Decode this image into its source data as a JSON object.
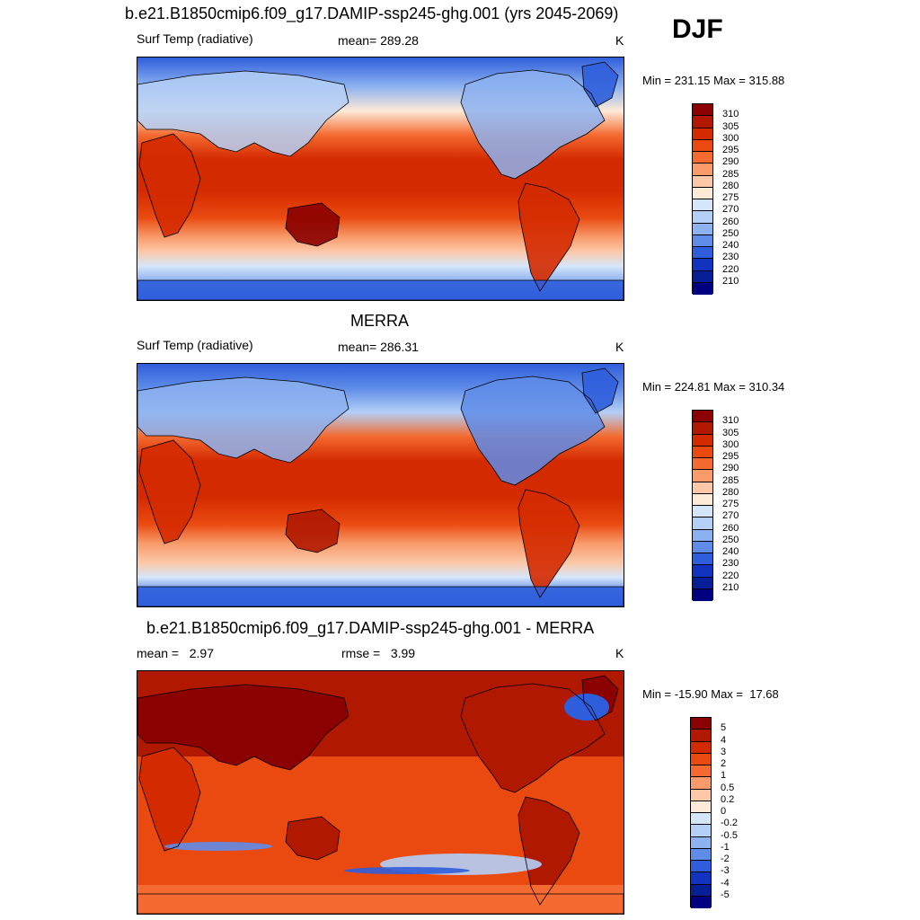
{
  "season": "DJF",
  "units": "K",
  "panels": [
    {
      "title": "b.e21.B1850cmip6.f09_g17.DAMIP-ssp245-ghg.001 (yrs 2045-2069)",
      "left_label": "Surf Temp (radiative)",
      "center_label": "mean= 289.28",
      "right_label": "K",
      "minmax": "Min = 231.15 Max = 315.88",
      "colorbar": {
        "labels": [
          "310",
          "305",
          "300",
          "295",
          "290",
          "285",
          "280",
          "275",
          "270",
          "260",
          "250",
          "240",
          "230",
          "220",
          "210"
        ],
        "colors": [
          "#8b0000",
          "#b01800",
          "#d42a00",
          "#ea4a10",
          "#f46a30",
          "#f89a6a",
          "#fcc8a8",
          "#fdebd8",
          "#d6e6fa",
          "#b4cff6",
          "#8db2f0",
          "#5f8ce8",
          "#2f5edc",
          "#1232c0",
          "#061e96",
          "#000080"
        ]
      },
      "map_style": "absolute"
    },
    {
      "title": "MERRA",
      "left_label": "Surf Temp (radiative)",
      "center_label": "mean= 286.31",
      "right_label": "K",
      "minmax": "Min = 224.81 Max = 310.34",
      "colorbar": {
        "labels": [
          "310",
          "305",
          "300",
          "295",
          "290",
          "285",
          "280",
          "275",
          "270",
          "260",
          "250",
          "240",
          "230",
          "220",
          "210"
        ],
        "colors": [
          "#8b0000",
          "#b01800",
          "#d42a00",
          "#ea4a10",
          "#f46a30",
          "#f89a6a",
          "#fcc8a8",
          "#fdebd8",
          "#d6e6fa",
          "#b4cff6",
          "#8db2f0",
          "#5f8ce8",
          "#2f5edc",
          "#1232c0",
          "#061e96",
          "#000080"
        ]
      },
      "map_style": "absolute"
    },
    {
      "title": "b.e21.B1850cmip6.f09_g17.DAMIP-ssp245-ghg.001 - MERRA",
      "left_label": "mean =   2.97",
      "center_label": "rmse =   3.99",
      "right_label": "K",
      "minmax": "Min = -15.90 Max =  17.68",
      "colorbar": {
        "labels": [
          "5",
          "4",
          "3",
          "2",
          "1",
          "0.5",
          "0.2",
          "0",
          "-0.2",
          "-0.5",
          "-1",
          "-2",
          "-3",
          "-4",
          "-5"
        ],
        "colors": [
          "#8b0000",
          "#b01800",
          "#d42a00",
          "#ea4a10",
          "#f46a30",
          "#f89a6a",
          "#fcc8a8",
          "#fdebd8",
          "#d6e6fa",
          "#b4cff6",
          "#8db2f0",
          "#5f8ce8",
          "#2f5edc",
          "#1232c0",
          "#061e96",
          "#000080"
        ]
      },
      "map_style": "difference"
    }
  ]
}
